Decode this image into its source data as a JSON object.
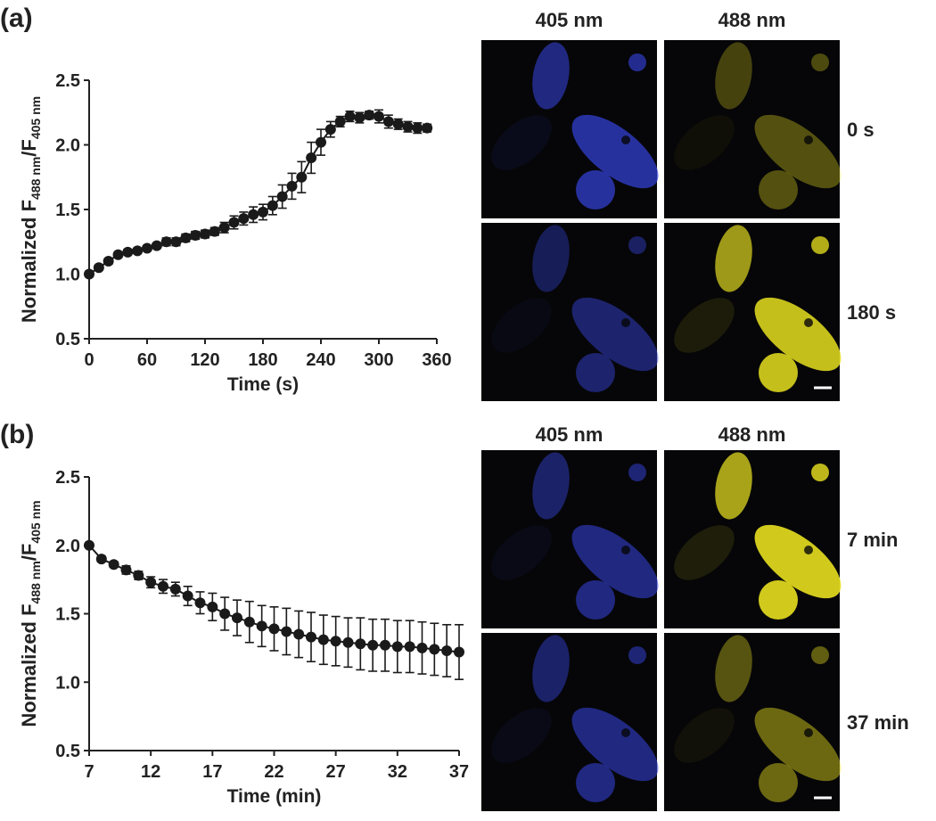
{
  "chart_data": [
    {
      "type": "line",
      "panel": "(a)",
      "xlabel": "Time (s)",
      "ylabel": [
        "Normalized F",
        "488 nm",
        "/F",
        "405 nm"
      ],
      "x": [
        0,
        10,
        20,
        30,
        40,
        50,
        60,
        70,
        80,
        90,
        100,
        110,
        120,
        130,
        140,
        150,
        160,
        170,
        180,
        190,
        200,
        210,
        220,
        230,
        240,
        250,
        260,
        270,
        280,
        290,
        300,
        310,
        320,
        330,
        340,
        350
      ],
      "values": [
        1.0,
        1.05,
        1.1,
        1.15,
        1.17,
        1.18,
        1.2,
        1.22,
        1.25,
        1.25,
        1.28,
        1.3,
        1.31,
        1.33,
        1.36,
        1.4,
        1.43,
        1.46,
        1.48,
        1.53,
        1.6,
        1.68,
        1.75,
        1.9,
        2.02,
        2.12,
        2.18,
        2.22,
        2.21,
        2.23,
        2.22,
        2.18,
        2.16,
        2.14,
        2.13,
        2.13
      ],
      "errors": [
        0.02,
        0.02,
        0.02,
        0.02,
        0.02,
        0.02,
        0.02,
        0.02,
        0.03,
        0.03,
        0.03,
        0.03,
        0.03,
        0.03,
        0.04,
        0.05,
        0.05,
        0.06,
        0.06,
        0.07,
        0.09,
        0.1,
        0.12,
        0.12,
        0.1,
        0.06,
        0.04,
        0.04,
        0.04,
        0.03,
        0.05,
        0.05,
        0.04,
        0.04,
        0.04,
        0.03
      ],
      "color": "#1a1a1a",
      "xlim": [
        0,
        360
      ],
      "xticks": [
        0,
        60,
        120,
        180,
        240,
        300,
        360
      ],
      "ylim": [
        0.5,
        2.5
      ],
      "yticks": [
        0.5,
        {
          "value": 1,
          "label": "1.0"
        },
        1.5,
        {
          "value": 2,
          "label": "2.0"
        },
        2.5
      ],
      "images": {
        "columns": [
          "405 nm",
          "488 nm"
        ],
        "rows": [
          "0 s",
          "180 s"
        ]
      }
    },
    {
      "type": "line",
      "panel": "(b)",
      "xlabel": "Time (min)",
      "ylabel": [
        "Normalized F",
        "488 nm",
        "/F",
        "405 nm"
      ],
      "x": [
        7,
        8,
        9,
        10,
        11,
        12,
        13,
        14,
        15,
        16,
        17,
        18,
        19,
        20,
        21,
        22,
        23,
        24,
        25,
        26,
        27,
        28,
        29,
        30,
        31,
        32,
        33,
        34,
        35,
        36,
        37
      ],
      "values": [
        2.0,
        1.9,
        1.86,
        1.82,
        1.78,
        1.73,
        1.7,
        1.68,
        1.63,
        1.58,
        1.55,
        1.5,
        1.47,
        1.44,
        1.41,
        1.39,
        1.37,
        1.35,
        1.33,
        1.31,
        1.3,
        1.29,
        1.28,
        1.27,
        1.27,
        1.26,
        1.26,
        1.25,
        1.24,
        1.23,
        1.22
      ],
      "errors": [
        0.01,
        0.02,
        0.02,
        0.03,
        0.03,
        0.04,
        0.05,
        0.05,
        0.07,
        0.08,
        0.1,
        0.12,
        0.13,
        0.15,
        0.15,
        0.16,
        0.17,
        0.17,
        0.18,
        0.18,
        0.18,
        0.18,
        0.19,
        0.19,
        0.19,
        0.19,
        0.19,
        0.19,
        0.19,
        0.19,
        0.2
      ],
      "color": "#1a1a1a",
      "xlim": [
        7,
        37
      ],
      "xticks": [
        7,
        12,
        17,
        22,
        27,
        32,
        37
      ],
      "ylim": [
        0.5,
        2.5
      ],
      "yticks": [
        0.5,
        {
          "value": 1,
          "label": "1.0"
        },
        1.5,
        {
          "value": 2,
          "label": "2.0"
        },
        2.5
      ],
      "images": {
        "columns": [
          "405 nm",
          "488 nm"
        ],
        "rows": [
          "7 min",
          "37 min"
        ]
      }
    }
  ]
}
